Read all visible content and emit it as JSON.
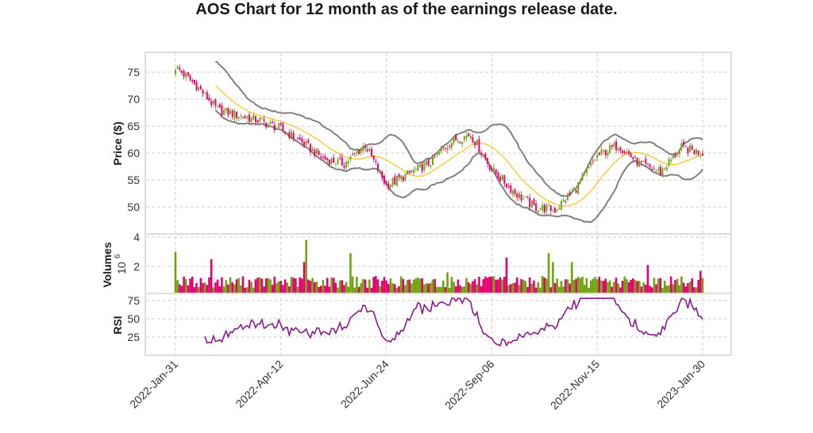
{
  "chart_data": {
    "type": "candlestick",
    "title": "AOS Chart for 12 month as of the earnings release date.",
    "xlabel": "",
    "xticks": [
      "2022-Jan-31",
      "2022-Apr-12",
      "2022-Jun-24",
      "2022-Sep-06",
      "2022-Nov-15",
      "2023-Jan-30"
    ],
    "xtick_trading_days": [
      0,
      50,
      100,
      150,
      200,
      250
    ],
    "trading_days": 250,
    "price_panel": {
      "ylabel": "Price ($)",
      "yticks": [
        50,
        55,
        60,
        65,
        70,
        75
      ],
      "ylim": [
        45,
        78.7
      ],
      "close_every_10_days": [
        76,
        72.5,
        68,
        67,
        66,
        64.5,
        62,
        59,
        58,
        61.5,
        54,
        56,
        58,
        62,
        63.5,
        57,
        53,
        50,
        49.5,
        53.5,
        59.5,
        61.5,
        58,
        56.5,
        61,
        60
      ],
      "overlays": [
        {
          "name": "SMA 20",
          "color": "#ffc425"
        },
        {
          "name": "Bollinger Bands (20, 2)",
          "color": "#808080"
        }
      ],
      "up_color": "#6fa40f",
      "down_color": "#e4006e"
    },
    "volume_panel": {
      "ylabel": "Volumes",
      "scale_label": "10",
      "scale_exponent": "6",
      "yticks": [
        2,
        4
      ],
      "ylim": [
        0.15,
        4.2
      ],
      "typical_volume_millions": 0.9,
      "spikes": [
        {
          "day": 0,
          "value": 3.0
        },
        {
          "day": 17,
          "value": 2.5
        },
        {
          "day": 62,
          "value": 3.8
        },
        {
          "day": 61,
          "value": 2.3
        },
        {
          "day": 83,
          "value": 2.9
        },
        {
          "day": 129,
          "value": 1.6
        },
        {
          "day": 157,
          "value": 2.6
        },
        {
          "day": 177,
          "value": 2.9
        },
        {
          "day": 179,
          "value": 2.3
        },
        {
          "day": 188,
          "value": 2.3
        },
        {
          "day": 224,
          "value": 2.1
        },
        {
          "day": 249,
          "value": 1.7
        }
      ]
    },
    "rsi_panel": {
      "ylabel": "RSI",
      "yticks": [
        25,
        50,
        75
      ],
      "ylim": [
        0,
        79
      ],
      "period": 14,
      "color": "#8b1a8b"
    }
  }
}
